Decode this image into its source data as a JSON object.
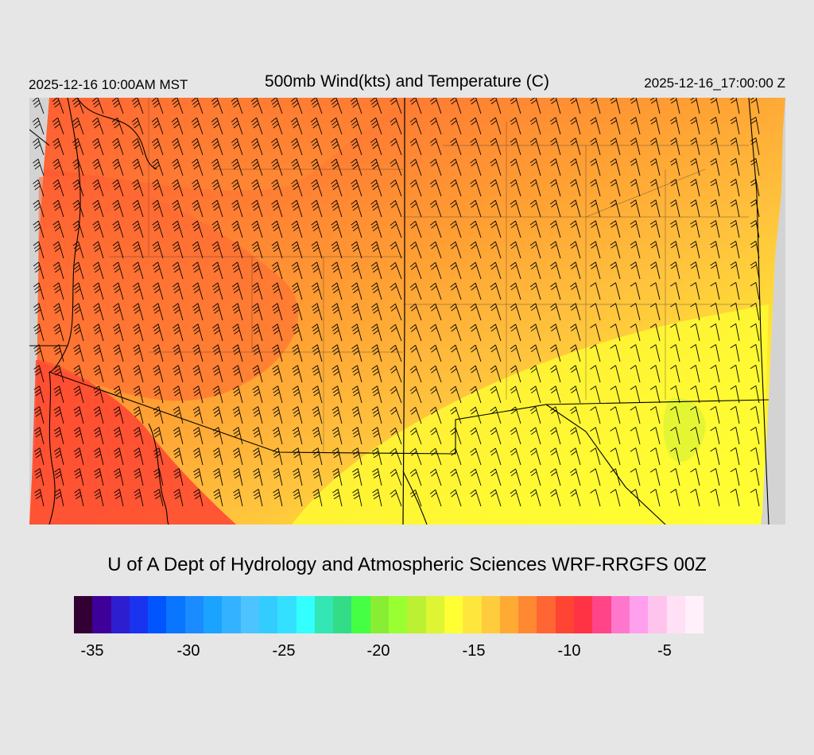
{
  "header": {
    "valid_local": "2025-12-16 10:00AM MST",
    "title": "500mb Wind(kts) and Temperature (C)",
    "valid_utc": "2025-12-16_17:00:00 Z"
  },
  "credit": "U of A Dept of Hydrology and Atmospheric Sciences WRF-RRGFS 00Z",
  "colorbar": {
    "colors": [
      "#330033",
      "#3d0099",
      "#2d1ed0",
      "#1a33ee",
      "#0055ff",
      "#0a75ff",
      "#1a8cff",
      "#1aa3ff",
      "#33b3ff",
      "#4dc4ff",
      "#33ccff",
      "#33e0ff",
      "#33ffff",
      "#33e6b3",
      "#33dd88",
      "#44ff44",
      "#88ee33",
      "#99ff33",
      "#bbf033",
      "#ddf533",
      "#ffff33",
      "#ffe63d",
      "#ffcc3d",
      "#ffaa33",
      "#ff8833",
      "#ff6633",
      "#ff4433",
      "#ff3344",
      "#ff4488",
      "#ff77cc",
      "#ffa0ee",
      "#ffc4ee",
      "#ffe0f5",
      "#fff0fa"
    ],
    "tick_labels": [
      "-35",
      "-30",
      "-25",
      "-20",
      "-15",
      "-10",
      "-5"
    ]
  },
  "map": {
    "palette": {
      "red": "#ff4433",
      "red_orange": "#ff6633",
      "orange": "#ff8833",
      "light_orange": "#ffaa33",
      "yellow_orange": "#ffcc3d",
      "yellow": "#ffff33",
      "light_green": "#ddf533",
      "missing": "#d3d3d3"
    }
  }
}
